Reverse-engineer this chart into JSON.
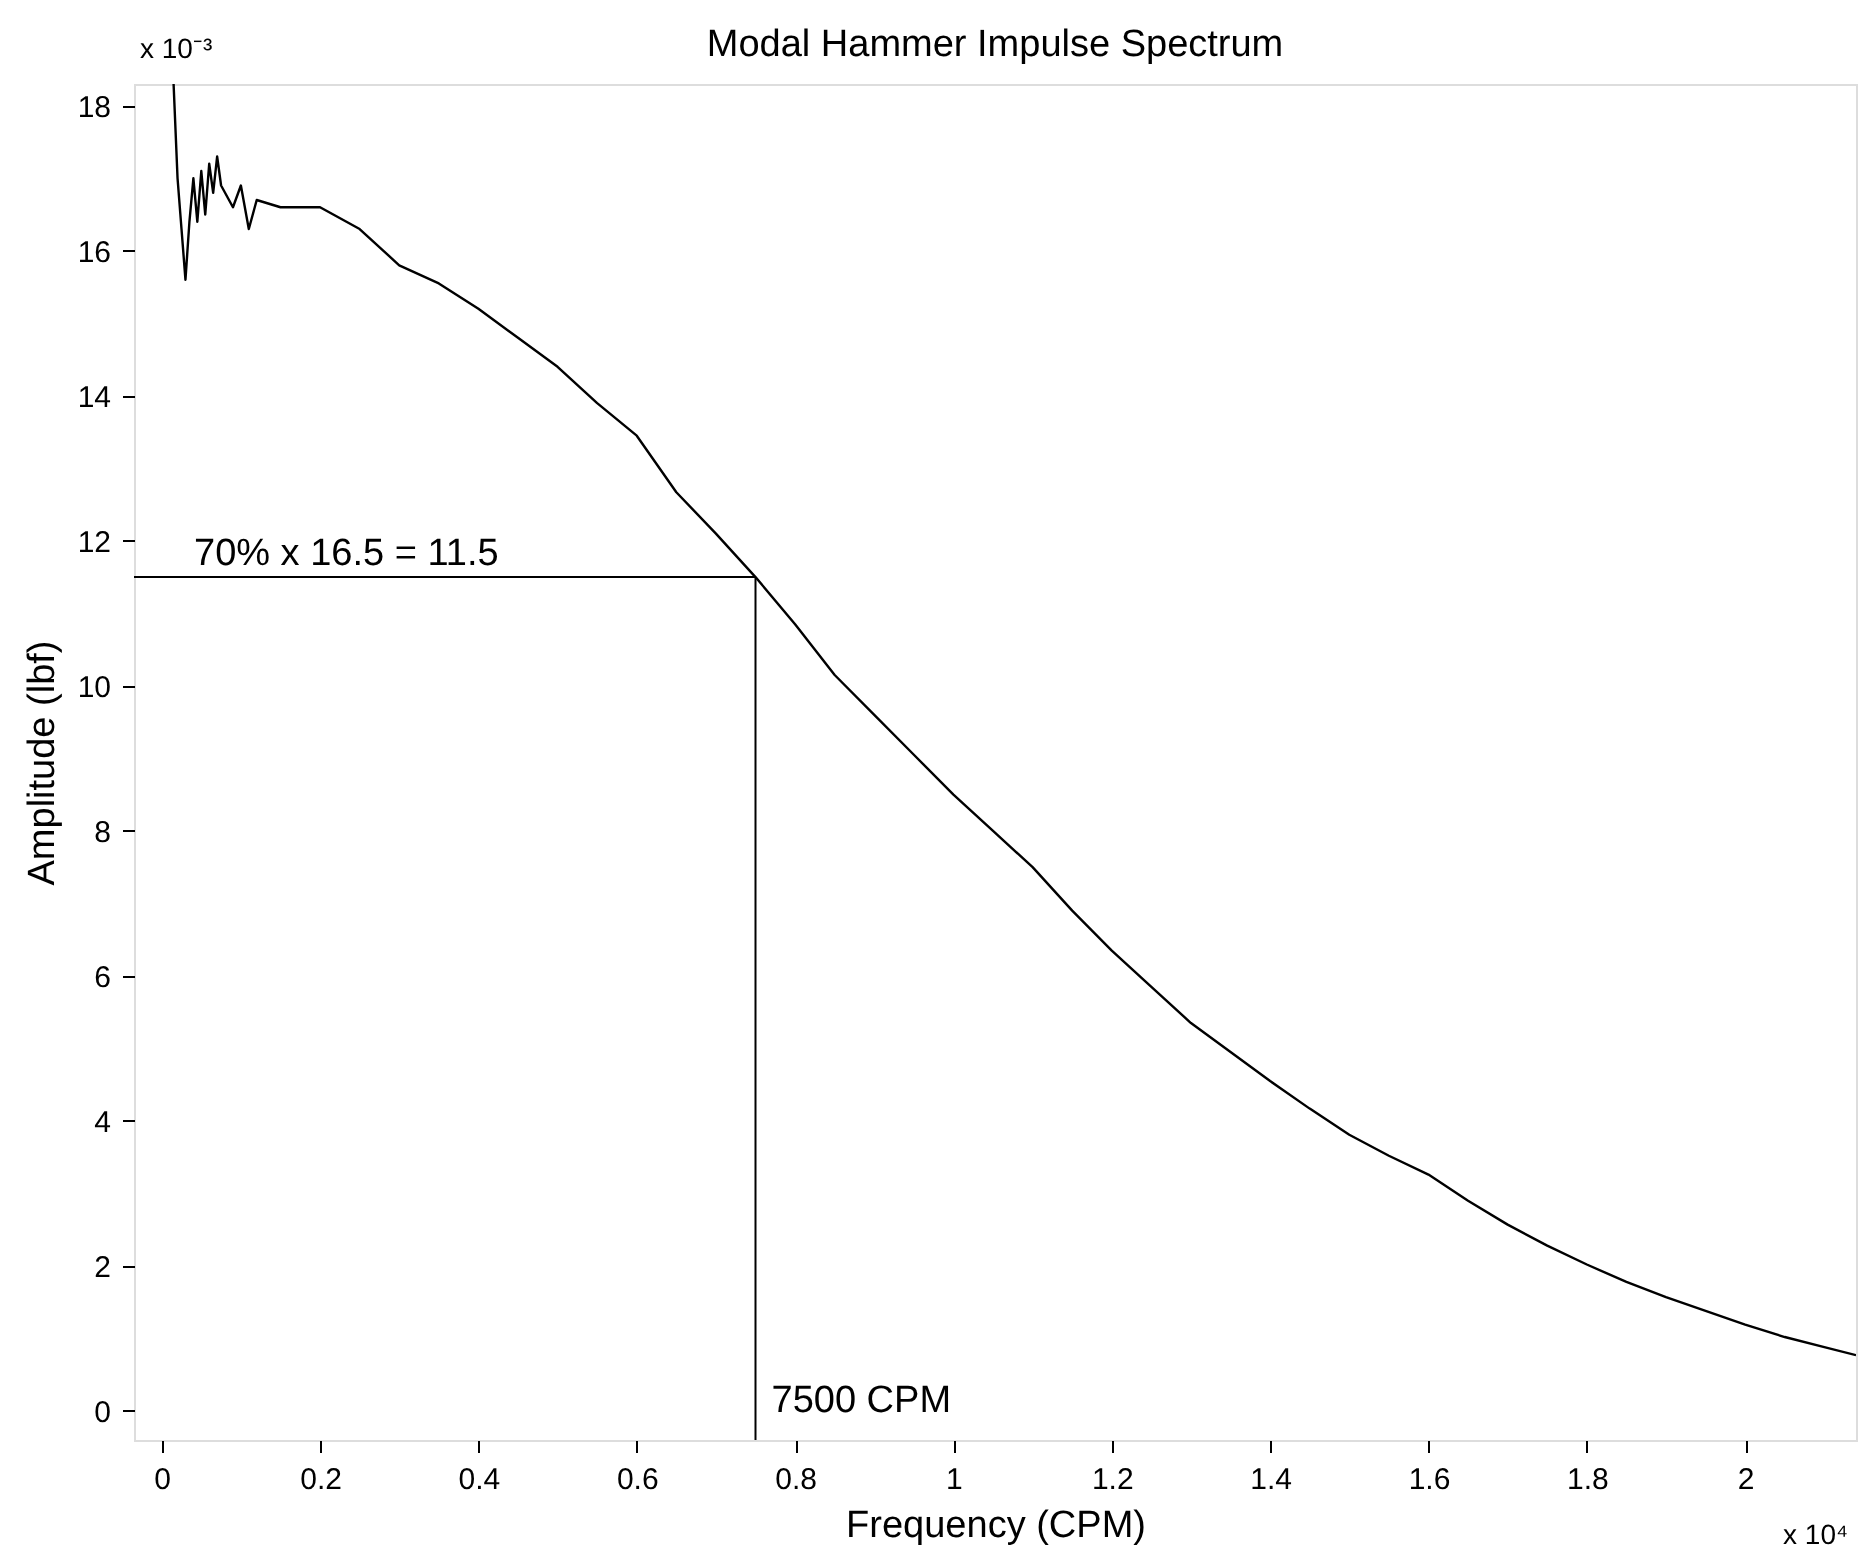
{
  "chart_data": {
    "type": "line",
    "title": "Modal Hammer Impulse Spectrum",
    "xlabel": "Frequency (CPM)",
    "ylabel": "Amplitude (lbf)",
    "x": [
      0.015,
      0.02,
      0.025,
      0.03,
      0.035,
      0.04,
      0.045,
      0.05,
      0.055,
      0.06,
      0.065,
      0.07,
      0.075,
      0.08,
      0.09,
      0.1,
      0.11,
      0.12,
      0.15,
      0.2,
      0.25,
      0.3,
      0.35,
      0.4,
      0.45,
      0.5,
      0.55,
      0.6,
      0.65,
      0.7,
      0.75,
      0.8,
      0.85,
      0.9,
      0.95,
      1.0,
      1.05,
      1.1,
      1.15,
      1.2,
      1.25,
      1.3,
      1.35,
      1.4,
      1.45,
      1.5,
      1.55,
      1.6,
      1.65,
      1.7,
      1.75,
      1.8,
      1.85,
      1.9,
      1.95,
      2.0,
      2.05,
      2.1,
      2.14
    ],
    "series": [
      {
        "color": "#000000",
        "values": [
          18.3,
          17.0,
          16.3,
          15.6,
          16.4,
          17.0,
          16.4,
          17.1,
          16.5,
          17.2,
          16.8,
          17.3,
          16.9,
          16.8,
          16.6,
          16.9,
          16.3,
          16.7,
          16.6,
          16.6,
          16.3,
          15.8,
          15.55,
          15.2,
          14.8,
          14.4,
          13.9,
          13.45,
          12.67,
          12.1,
          11.5,
          10.85,
          10.15,
          9.6,
          9.05,
          8.5,
          8.0,
          7.5,
          6.9,
          6.35,
          5.85,
          5.35,
          4.95,
          4.55,
          4.17,
          3.81,
          3.52,
          3.26,
          2.9,
          2.57,
          2.28,
          2.02,
          1.78,
          1.57,
          1.38,
          1.19,
          1.02,
          0.88,
          0.77
        ]
      }
    ],
    "xlim": [
      -0.035,
      2.14
    ],
    "ylim": [
      -0.4,
      18.3
    ],
    "xticks": [
      0,
      0.2,
      0.4,
      0.6,
      0.8,
      1,
      1.2,
      1.4,
      1.6,
      1.8,
      2
    ],
    "yticks": [
      0,
      2,
      4,
      6,
      8,
      10,
      12,
      14,
      16,
      18
    ],
    "grid": false,
    "marker": "none",
    "line_style": "solid",
    "ref_lines": [
      {
        "axis": "y",
        "value": 11.5,
        "label": "70% x 16.5 = 11.5",
        "color": "#000000"
      },
      {
        "axis": "x",
        "value": 0.75,
        "label": "7500 CPM",
        "color": "#000000"
      }
    ],
    "annotations": [
      "x 10⁻³",
      "x 10⁴"
    ]
  }
}
